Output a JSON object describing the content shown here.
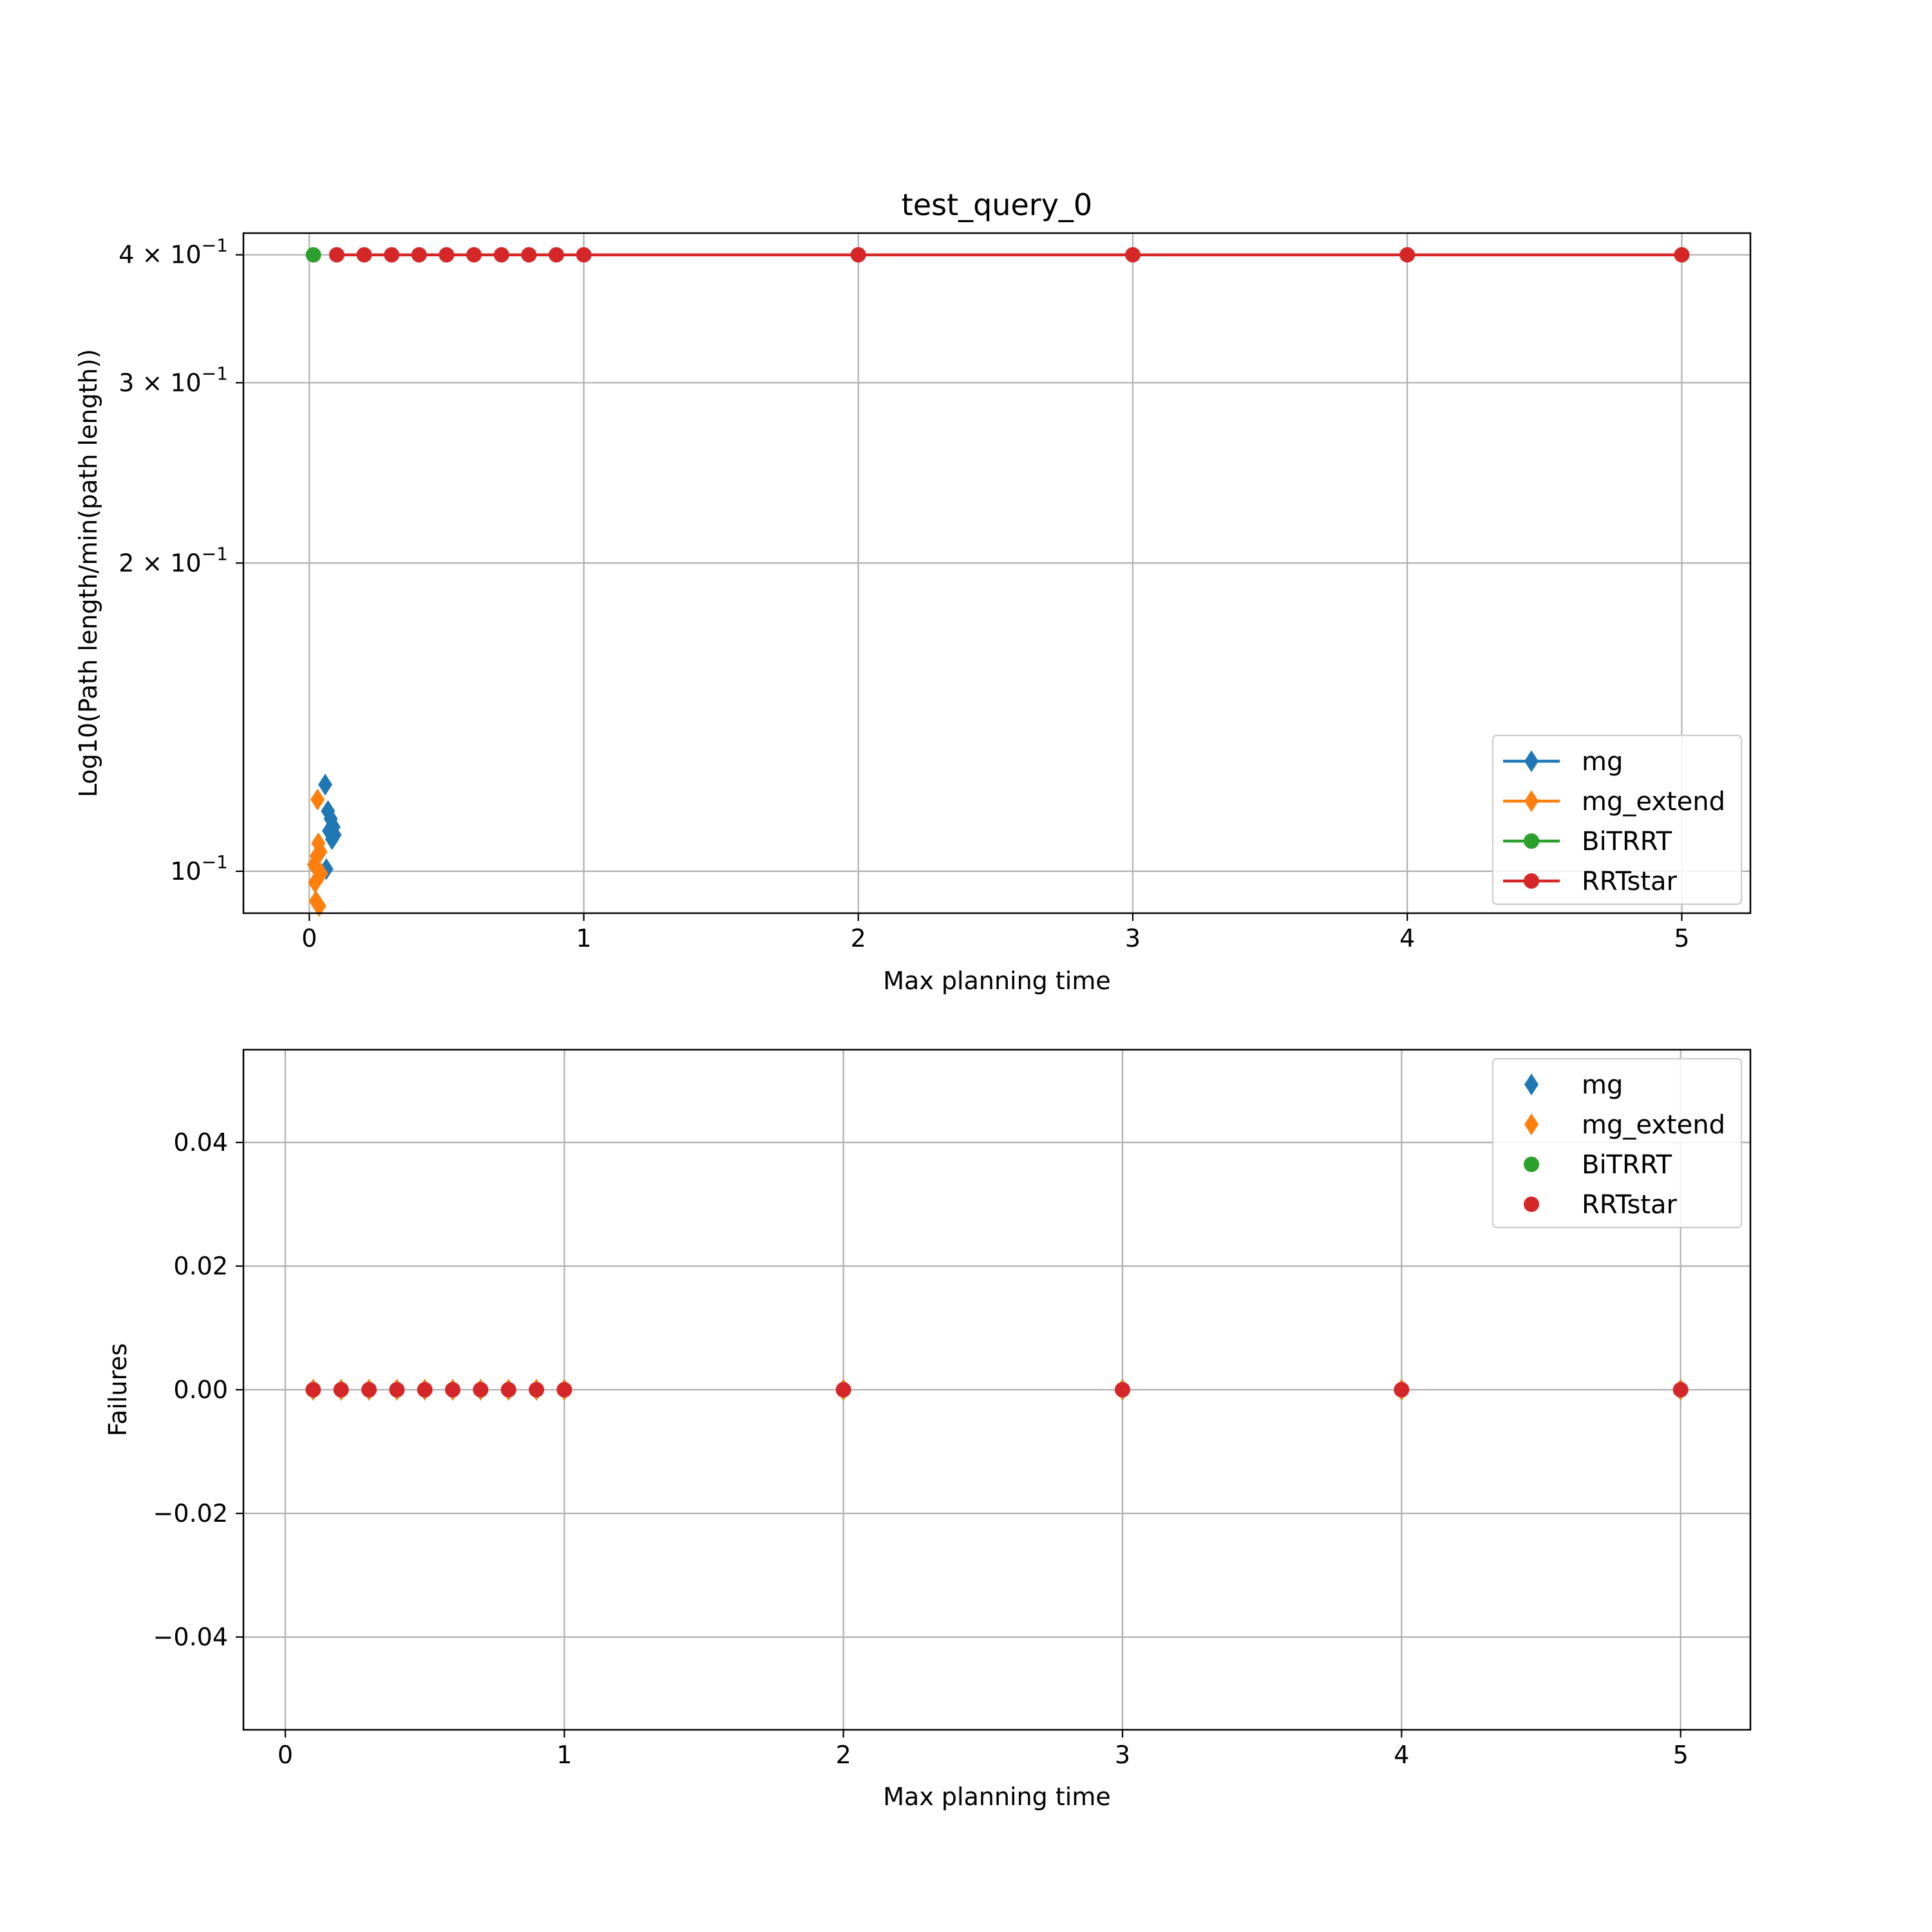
{
  "colors": {
    "mg": "#1f77b4",
    "mg_extend": "#ff7f0e",
    "BiTRRT": "#2ca02c",
    "RRTstar": "#d62728",
    "grid": "#b0b0b0"
  },
  "chart_data": [
    {
      "type": "line",
      "title": "test_query_0",
      "xlabel": "Max planning time",
      "ylabel": "Log10(Path length/min(path length))",
      "yscale": "log",
      "xlim": [
        -0.24,
        5.25
      ],
      "ylim": [
        0.091,
        0.42
      ],
      "xticks": [
        0,
        1,
        2,
        3,
        4,
        5
      ],
      "xtick_labels": [
        "0",
        "1",
        "2",
        "3",
        "4",
        "5"
      ],
      "yticks": [
        0.1,
        0.2,
        0.3,
        0.4
      ],
      "ytick_labels": [
        {
          "base": "10",
          "exp": "−1",
          "coef": ""
        },
        {
          "base": "10",
          "exp": "−1",
          "coef": "2 × "
        },
        {
          "base": "10",
          "exp": "−1",
          "coef": "3 × "
        },
        {
          "base": "10",
          "exp": "−1",
          "coef": "4 × "
        }
      ],
      "grid": true,
      "legend_position": "lower right",
      "series": [
        {
          "name": "mg",
          "color_key": "mg",
          "marker": "diamond",
          "line": false,
          "x": [
            0.058,
            0.062,
            0.068,
            0.072,
            0.078,
            0.083,
            0.088,
            0.092
          ],
          "y": [
            0.1215,
            0.1005,
            0.1145,
            0.1095,
            0.1125,
            0.1075,
            0.1105,
            0.1085
          ]
        },
        {
          "name": "mg_extend",
          "color_key": "mg_extend",
          "marker": "diamond",
          "line": false,
          "x": [
            0.018,
            0.021,
            0.024,
            0.027,
            0.03,
            0.033,
            0.036,
            0.04,
            0.043
          ],
          "y": [
            0.1015,
            0.0975,
            0.0935,
            0.1035,
            0.1175,
            0.1065,
            0.0925,
            0.1045,
            0.0995
          ]
        },
        {
          "name": "BiTRRT",
          "color_key": "BiTRRT",
          "marker": "circle",
          "line": true,
          "x": [
            0.015
          ],
          "y": [
            0.4
          ]
        },
        {
          "name": "RRTstar",
          "color_key": "RRTstar",
          "marker": "circle",
          "line": true,
          "x": [
            0.1,
            0.2,
            0.3,
            0.4,
            0.5,
            0.6,
            0.7,
            0.8,
            0.9,
            1.0,
            2.0,
            3.0,
            4.0,
            5.0
          ],
          "y": [
            0.4,
            0.4,
            0.4,
            0.4,
            0.4,
            0.4,
            0.4,
            0.4,
            0.4,
            0.4,
            0.4,
            0.4,
            0.4,
            0.4
          ]
        }
      ]
    },
    {
      "type": "scatter",
      "title": "",
      "xlabel": "Max planning time",
      "ylabel": "Failures",
      "yscale": "linear",
      "xlim": [
        -0.15,
        5.25
      ],
      "ylim": [
        -0.055,
        0.055
      ],
      "xticks": [
        0,
        1,
        2,
        3,
        4,
        5
      ],
      "xtick_labels": [
        "0",
        "1",
        "2",
        "3",
        "4",
        "5"
      ],
      "yticks": [
        -0.04,
        -0.02,
        0.0,
        0.02,
        0.04
      ],
      "ytick_labels": [
        "−0.04",
        "−0.02",
        "0.00",
        "0.02",
        "0.04"
      ],
      "grid": true,
      "legend_position": "upper right",
      "series": [
        {
          "name": "mg",
          "color_key": "mg",
          "marker": "diamond",
          "line": false,
          "x": [
            0.1,
            0.2,
            0.3,
            0.4,
            0.5,
            0.6,
            0.7,
            0.8,
            0.9,
            1.0,
            2.0,
            3.0,
            4.0,
            5.0
          ],
          "y": [
            0,
            0,
            0,
            0,
            0,
            0,
            0,
            0,
            0,
            0,
            0,
            0,
            0,
            0
          ]
        },
        {
          "name": "mg_extend",
          "color_key": "mg_extend",
          "marker": "diamond",
          "line": false,
          "x": [
            0.1,
            0.2,
            0.3,
            0.4,
            0.5,
            0.6,
            0.7,
            0.8,
            0.9,
            1.0,
            2.0,
            3.0,
            4.0,
            5.0
          ],
          "y": [
            0,
            0,
            0,
            0,
            0,
            0,
            0,
            0,
            0,
            0,
            0,
            0,
            0,
            0
          ]
        },
        {
          "name": "BiTRRT",
          "color_key": "BiTRRT",
          "marker": "circle",
          "line": false,
          "x": [],
          "y": []
        },
        {
          "name": "RRTstar",
          "color_key": "RRTstar",
          "marker": "circle",
          "line": false,
          "x": [
            0.1,
            0.2,
            0.3,
            0.4,
            0.5,
            0.6,
            0.7,
            0.8,
            0.9,
            1.0,
            2.0,
            3.0,
            4.0,
            5.0
          ],
          "y": [
            0,
            0,
            0,
            0,
            0,
            0,
            0,
            0,
            0,
            0,
            0,
            0,
            0,
            0
          ]
        }
      ]
    }
  ]
}
